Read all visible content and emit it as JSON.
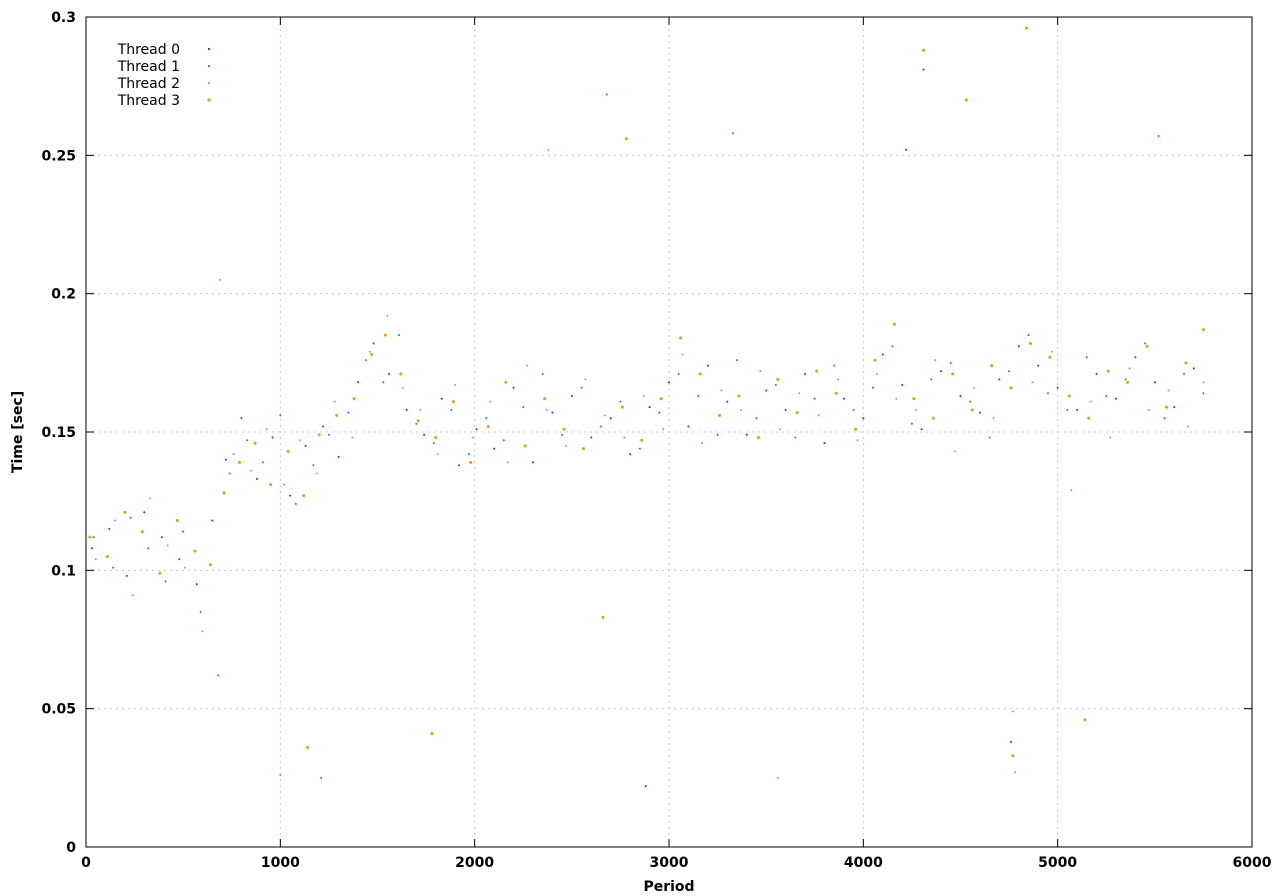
{
  "chart_data": {
    "type": "scatter",
    "title": "",
    "xlabel": "Period",
    "ylabel": "Time [sec]",
    "xlim": [
      0,
      6000
    ],
    "ylim": [
      0,
      0.3
    ],
    "x_ticks": [
      0,
      1000,
      2000,
      3000,
      4000,
      5000,
      6000
    ],
    "y_ticks": [
      0,
      0.05,
      0.1,
      0.15,
      0.2,
      0.25,
      0.3
    ],
    "grid": true,
    "legend_position": "top-left",
    "series": [
      {
        "name": "Thread 0",
        "color": "#9400d3",
        "marker": "dot",
        "points": [
          [
            30,
            0.108
          ],
          [
            120,
            0.115
          ],
          [
            210,
            0.098
          ],
          [
            300,
            0.121
          ],
          [
            390,
            0.112
          ],
          [
            480,
            0.104
          ],
          [
            570,
            0.095
          ],
          [
            650,
            0.118
          ],
          [
            720,
            0.14
          ],
          [
            800,
            0.155
          ],
          [
            880,
            0.133
          ],
          [
            960,
            0.148
          ],
          [
            1050,
            0.127
          ],
          [
            1130,
            0.145
          ],
          [
            1220,
            0.152
          ],
          [
            1300,
            0.141
          ],
          [
            1400,
            0.168
          ],
          [
            1480,
            0.182
          ],
          [
            1560,
            0.171
          ],
          [
            1650,
            0.158
          ],
          [
            1740,
            0.149
          ],
          [
            1830,
            0.162
          ],
          [
            1920,
            0.138
          ],
          [
            2010,
            0.151
          ],
          [
            2100,
            0.144
          ],
          [
            2200,
            0.166
          ],
          [
            2300,
            0.139
          ],
          [
            2400,
            0.157
          ],
          [
            2500,
            0.163
          ],
          [
            2600,
            0.148
          ],
          [
            2700,
            0.155
          ],
          [
            2800,
            0.142
          ],
          [
            2900,
            0.159
          ],
          [
            3000,
            0.168
          ],
          [
            3100,
            0.152
          ],
          [
            3200,
            0.174
          ],
          [
            3300,
            0.161
          ],
          [
            3400,
            0.149
          ],
          [
            3500,
            0.165
          ],
          [
            3600,
            0.158
          ],
          [
            3700,
            0.171
          ],
          [
            3800,
            0.146
          ],
          [
            3900,
            0.162
          ],
          [
            4000,
            0.155
          ],
          [
            4100,
            0.178
          ],
          [
            4200,
            0.167
          ],
          [
            4300,
            0.151
          ],
          [
            4400,
            0.172
          ],
          [
            4500,
            0.163
          ],
          [
            4600,
            0.157
          ],
          [
            4700,
            0.169
          ],
          [
            4800,
            0.181
          ],
          [
            4900,
            0.174
          ],
          [
            5000,
            0.166
          ],
          [
            5100,
            0.158
          ],
          [
            5200,
            0.171
          ],
          [
            5300,
            0.162
          ],
          [
            5400,
            0.177
          ],
          [
            5500,
            0.168
          ],
          [
            5600,
            0.159
          ],
          [
            5700,
            0.173
          ],
          [
            4310,
            0.281
          ],
          [
            2880,
            0.022
          ],
          [
            4760,
            0.038
          ],
          [
            4220,
            0.252
          ]
        ]
      },
      {
        "name": "Thread 1",
        "color": "#009e73",
        "marker": "dot",
        "points": [
          [
            40,
            0.112
          ],
          [
            140,
            0.101
          ],
          [
            230,
            0.119
          ],
          [
            320,
            0.108
          ],
          [
            410,
            0.096
          ],
          [
            500,
            0.114
          ],
          [
            590,
            0.085
          ],
          [
            680,
            0.062
          ],
          [
            740,
            0.135
          ],
          [
            830,
            0.147
          ],
          [
            910,
            0.139
          ],
          [
            1000,
            0.156
          ],
          [
            1080,
            0.124
          ],
          [
            1170,
            0.138
          ],
          [
            1250,
            0.149
          ],
          [
            1350,
            0.157
          ],
          [
            1440,
            0.176
          ],
          [
            1530,
            0.168
          ],
          [
            1610,
            0.185
          ],
          [
            1700,
            0.153
          ],
          [
            1790,
            0.146
          ],
          [
            1880,
            0.158
          ],
          [
            1970,
            0.142
          ],
          [
            2060,
            0.155
          ],
          [
            2150,
            0.147
          ],
          [
            2250,
            0.159
          ],
          [
            2350,
            0.171
          ],
          [
            2450,
            0.149
          ],
          [
            2550,
            0.166
          ],
          [
            2650,
            0.152
          ],
          [
            2750,
            0.161
          ],
          [
            2850,
            0.144
          ],
          [
            2950,
            0.157
          ],
          [
            3050,
            0.171
          ],
          [
            3150,
            0.163
          ],
          [
            3250,
            0.149
          ],
          [
            3350,
            0.176
          ],
          [
            3450,
            0.155
          ],
          [
            3550,
            0.167
          ],
          [
            3650,
            0.148
          ],
          [
            3750,
            0.162
          ],
          [
            3850,
            0.174
          ],
          [
            3950,
            0.158
          ],
          [
            4050,
            0.166
          ],
          [
            4150,
            0.181
          ],
          [
            4250,
            0.153
          ],
          [
            4350,
            0.169
          ],
          [
            4450,
            0.175
          ],
          [
            4550,
            0.161
          ],
          [
            4650,
            0.148
          ],
          [
            4750,
            0.172
          ],
          [
            4850,
            0.185
          ],
          [
            4950,
            0.164
          ],
          [
            5050,
            0.158
          ],
          [
            5150,
            0.177
          ],
          [
            5250,
            0.163
          ],
          [
            5350,
            0.169
          ],
          [
            5450,
            0.182
          ],
          [
            5550,
            0.155
          ],
          [
            5650,
            0.171
          ],
          [
            5750,
            0.164
          ],
          [
            1210,
            0.025
          ],
          [
            2680,
            0.272
          ],
          [
            3330,
            0.258
          ],
          [
            5520,
            0.257
          ]
        ]
      },
      {
        "name": "Thread 2",
        "color": "#56b4e9",
        "marker": "dot",
        "points": [
          [
            50,
            0.104
          ],
          [
            150,
            0.118
          ],
          [
            240,
            0.091
          ],
          [
            330,
            0.126
          ],
          [
            420,
            0.109
          ],
          [
            510,
            0.101
          ],
          [
            600,
            0.078
          ],
          [
            690,
            0.205
          ],
          [
            760,
            0.142
          ],
          [
            850,
            0.136
          ],
          [
            930,
            0.151
          ],
          [
            1020,
            0.131
          ],
          [
            1100,
            0.147
          ],
          [
            1190,
            0.135
          ],
          [
            1280,
            0.161
          ],
          [
            1370,
            0.148
          ],
          [
            1460,
            0.179
          ],
          [
            1550,
            0.192
          ],
          [
            1630,
            0.166
          ],
          [
            1720,
            0.158
          ],
          [
            1810,
            0.142
          ],
          [
            1900,
            0.167
          ],
          [
            1990,
            0.148
          ],
          [
            2080,
            0.161
          ],
          [
            2170,
            0.139
          ],
          [
            2270,
            0.174
          ],
          [
            2370,
            0.158
          ],
          [
            2470,
            0.145
          ],
          [
            2570,
            0.169
          ],
          [
            2670,
            0.156
          ],
          [
            2770,
            0.148
          ],
          [
            2870,
            0.163
          ],
          [
            2970,
            0.151
          ],
          [
            3070,
            0.178
          ],
          [
            3170,
            0.146
          ],
          [
            3270,
            0.165
          ],
          [
            3370,
            0.158
          ],
          [
            3470,
            0.172
          ],
          [
            3570,
            0.151
          ],
          [
            3670,
            0.164
          ],
          [
            3770,
            0.156
          ],
          [
            3870,
            0.169
          ],
          [
            3970,
            0.147
          ],
          [
            4070,
            0.171
          ],
          [
            4170,
            0.162
          ],
          [
            4270,
            0.158
          ],
          [
            4370,
            0.176
          ],
          [
            4470,
            0.143
          ],
          [
            4570,
            0.166
          ],
          [
            4670,
            0.155
          ],
          [
            4770,
            0.049
          ],
          [
            4870,
            0.168
          ],
          [
            4970,
            0.179
          ],
          [
            5070,
            0.129
          ],
          [
            5170,
            0.161
          ],
          [
            5270,
            0.148
          ],
          [
            5370,
            0.173
          ],
          [
            5470,
            0.158
          ],
          [
            5570,
            0.165
          ],
          [
            5670,
            0.152
          ],
          [
            5750,
            0.168
          ],
          [
            1000,
            0.026
          ],
          [
            3560,
            0.025
          ],
          [
            2380,
            0.252
          ],
          [
            4780,
            0.027
          ]
        ]
      },
      {
        "name": "Thread 3",
        "color": "#e69f00",
        "marker": "dot",
        "points": [
          [
            20,
            0.112
          ],
          [
            110,
            0.105
          ],
          [
            200,
            0.121
          ],
          [
            290,
            0.114
          ],
          [
            380,
            0.099
          ],
          [
            470,
            0.118
          ],
          [
            560,
            0.107
          ],
          [
            640,
            0.102
          ],
          [
            710,
            0.128
          ],
          [
            790,
            0.139
          ],
          [
            870,
            0.146
          ],
          [
            950,
            0.131
          ],
          [
            1040,
            0.143
          ],
          [
            1120,
            0.127
          ],
          [
            1200,
            0.149
          ],
          [
            1290,
            0.156
          ],
          [
            1380,
            0.162
          ],
          [
            1470,
            0.178
          ],
          [
            1540,
            0.185
          ],
          [
            1620,
            0.171
          ],
          [
            1710,
            0.154
          ],
          [
            1800,
            0.148
          ],
          [
            1890,
            0.161
          ],
          [
            1980,
            0.139
          ],
          [
            2070,
            0.152
          ],
          [
            2160,
            0.168
          ],
          [
            2260,
            0.145
          ],
          [
            2360,
            0.162
          ],
          [
            2460,
            0.151
          ],
          [
            2560,
            0.144
          ],
          [
            2660,
            0.083
          ],
          [
            2760,
            0.159
          ],
          [
            2860,
            0.147
          ],
          [
            2960,
            0.162
          ],
          [
            3060,
            0.184
          ],
          [
            3160,
            0.171
          ],
          [
            3260,
            0.156
          ],
          [
            3360,
            0.163
          ],
          [
            3460,
            0.148
          ],
          [
            3560,
            0.169
          ],
          [
            3660,
            0.157
          ],
          [
            3760,
            0.172
          ],
          [
            3860,
            0.164
          ],
          [
            3960,
            0.151
          ],
          [
            4060,
            0.176
          ],
          [
            4160,
            0.189
          ],
          [
            4260,
            0.162
          ],
          [
            4360,
            0.155
          ],
          [
            4460,
            0.171
          ],
          [
            4560,
            0.158
          ],
          [
            4660,
            0.174
          ],
          [
            4760,
            0.166
          ],
          [
            4860,
            0.182
          ],
          [
            4960,
            0.177
          ],
          [
            5060,
            0.163
          ],
          [
            5160,
            0.155
          ],
          [
            5260,
            0.172
          ],
          [
            5360,
            0.168
          ],
          [
            5460,
            0.181
          ],
          [
            5560,
            0.159
          ],
          [
            5660,
            0.175
          ],
          [
            5750,
            0.187
          ],
          [
            4310,
            0.288
          ],
          [
            4840,
            0.296
          ],
          [
            4530,
            0.27
          ],
          [
            2780,
            0.256
          ],
          [
            1140,
            0.036
          ],
          [
            4770,
            0.033
          ],
          [
            1780,
            0.041
          ],
          [
            5140,
            0.046
          ]
        ]
      }
    ]
  }
}
